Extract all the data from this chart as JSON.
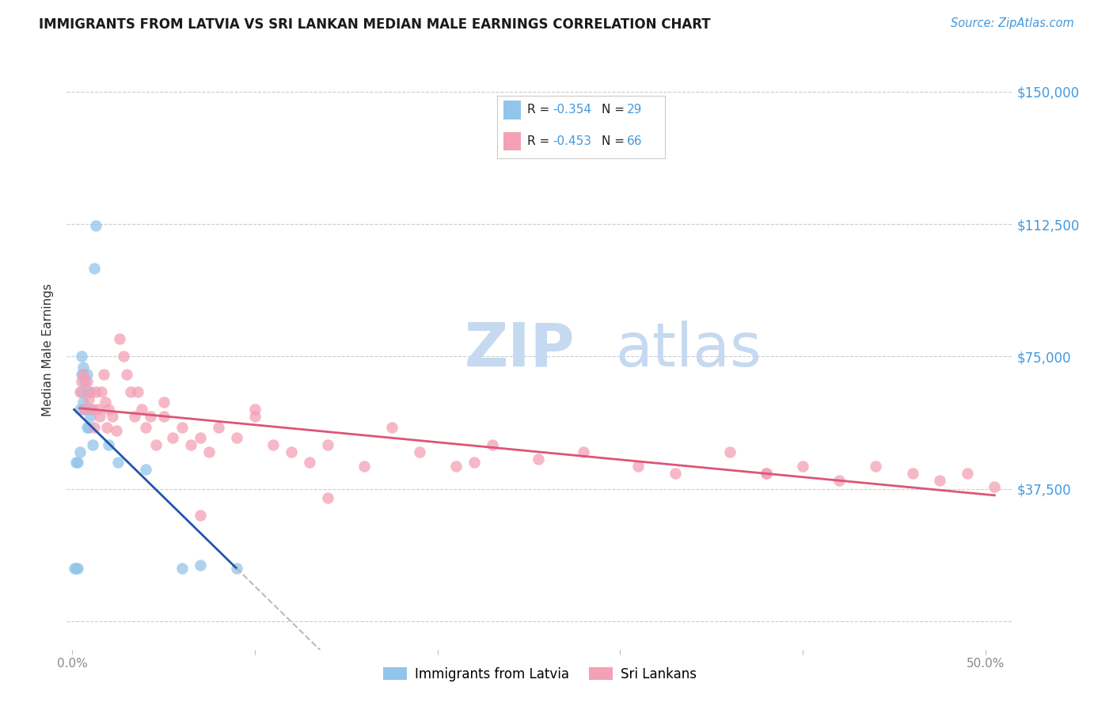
{
  "title": "IMMIGRANTS FROM LATVIA VS SRI LANKAN MEDIAN MALE EARNINGS CORRELATION CHART",
  "source": "Source: ZipAtlas.com",
  "ylabel": "Median Male Earnings",
  "xlabel": "",
  "xlim": [
    -0.003,
    0.515
  ],
  "ylim": [
    -8000,
    162000
  ],
  "yticks": [
    0,
    37500,
    75000,
    112500,
    150000
  ],
  "xticks": [
    0.0,
    0.1,
    0.2,
    0.3,
    0.4,
    0.5
  ],
  "xtick_labels": [
    "0.0%",
    "",
    "",
    "",
    "",
    "50.0%"
  ],
  "ytick_labels_right": [
    "",
    "$37,500",
    "$75,000",
    "$112,500",
    "$150,000"
  ],
  "legend_r1": "-0.354",
  "legend_n1": "29",
  "legend_r2": "-0.453",
  "legend_n2": "66",
  "label1": "Immigrants from Latvia",
  "label2": "Sri Lankans",
  "color1": "#92C5EB",
  "color2": "#F4A0B5",
  "line_color1": "#2255AA",
  "line_color2": "#DD5577",
  "title_color": "#1a1a1a",
  "source_color": "#4499DD",
  "axis_label_color": "#333333",
  "ytick_color": "#4499DD",
  "grid_color": "#CCCCCC",
  "watermark_zip": "ZIP",
  "watermark_atlas": "atlas",
  "watermark_color": "#C5D9F0",
  "background_color": "#FFFFFF",
  "latvia_x": [
    0.001,
    0.002,
    0.002,
    0.003,
    0.003,
    0.004,
    0.004,
    0.005,
    0.005,
    0.005,
    0.006,
    0.006,
    0.007,
    0.007,
    0.008,
    0.008,
    0.009,
    0.009,
    0.01,
    0.01,
    0.011,
    0.012,
    0.013,
    0.02,
    0.025,
    0.04,
    0.06,
    0.07,
    0.09
  ],
  "latvia_y": [
    15000,
    15000,
    45000,
    15000,
    45000,
    60000,
    48000,
    65000,
    70000,
    75000,
    72000,
    62000,
    68000,
    60000,
    70000,
    55000,
    65000,
    55000,
    58000,
    60000,
    50000,
    100000,
    112000,
    50000,
    45000,
    43000,
    15000,
    16000,
    15000
  ],
  "srilanka_x": [
    0.004,
    0.005,
    0.006,
    0.007,
    0.008,
    0.009,
    0.01,
    0.011,
    0.012,
    0.013,
    0.014,
    0.015,
    0.016,
    0.017,
    0.018,
    0.019,
    0.02,
    0.022,
    0.024,
    0.026,
    0.028,
    0.03,
    0.032,
    0.034,
    0.036,
    0.038,
    0.04,
    0.043,
    0.046,
    0.05,
    0.055,
    0.06,
    0.065,
    0.07,
    0.075,
    0.08,
    0.09,
    0.1,
    0.11,
    0.12,
    0.13,
    0.14,
    0.16,
    0.175,
    0.19,
    0.21,
    0.23,
    0.255,
    0.28,
    0.31,
    0.33,
    0.36,
    0.38,
    0.4,
    0.42,
    0.44,
    0.46,
    0.475,
    0.49,
    0.505,
    0.05,
    0.07,
    0.1,
    0.14,
    0.22,
    0.38
  ],
  "srilanka_y": [
    65000,
    68000,
    70000,
    60000,
    68000,
    63000,
    65000,
    60000,
    55000,
    65000,
    60000,
    58000,
    65000,
    70000,
    62000,
    55000,
    60000,
    58000,
    54000,
    80000,
    75000,
    70000,
    65000,
    58000,
    65000,
    60000,
    55000,
    58000,
    50000,
    58000,
    52000,
    55000,
    50000,
    52000,
    48000,
    55000,
    52000,
    58000,
    50000,
    48000,
    45000,
    50000,
    44000,
    55000,
    48000,
    44000,
    50000,
    46000,
    48000,
    44000,
    42000,
    48000,
    42000,
    44000,
    40000,
    44000,
    42000,
    40000,
    42000,
    38000,
    62000,
    30000,
    60000,
    35000,
    45000,
    42000
  ]
}
